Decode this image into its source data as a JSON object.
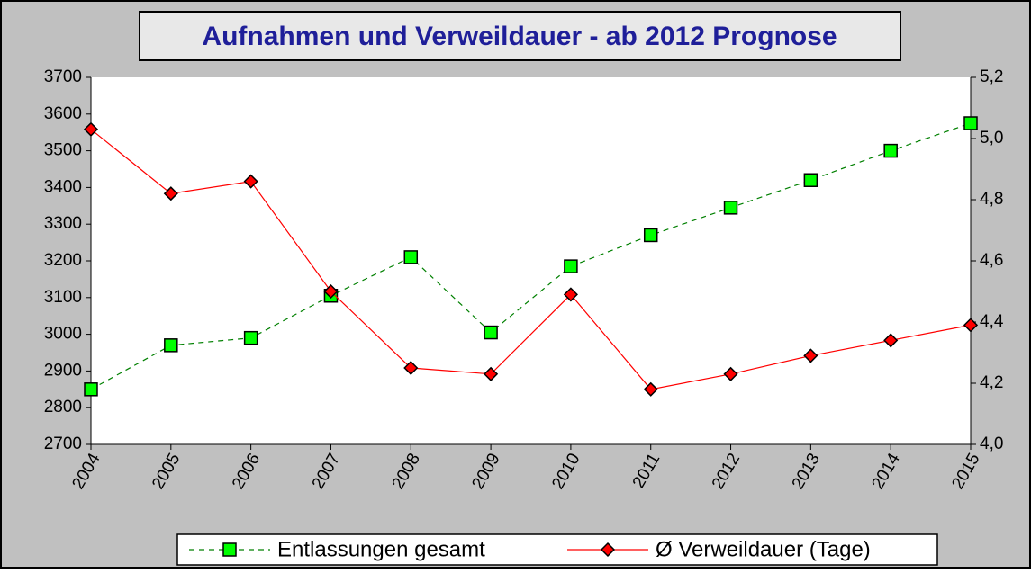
{
  "chart_data": {
    "type": "line",
    "title": "Aufnahmen und Verweildauer - ab 2012 Prognose",
    "categories": [
      "2004",
      "2005",
      "2006",
      "2007",
      "2008",
      "2009",
      "2010",
      "2011",
      "2012",
      "2013",
      "2014",
      "2015"
    ],
    "series": [
      {
        "name": "Entlassungen gesamt",
        "color": "#00ff00",
        "line_color": "#008000",
        "dashed": true,
        "marker": "square",
        "values": [
          2850,
          2970,
          2990,
          3105,
          3210,
          3005,
          3185,
          3270,
          3345,
          3420,
          3500,
          3575
        ]
      },
      {
        "name": "Ø Verweildauer (Tage)",
        "color": "#ff0000",
        "line_color": "#ff0000",
        "dashed": false,
        "marker": "diamond",
        "axis": "y2",
        "values": [
          5.03,
          4.82,
          4.86,
          4.5,
          4.25,
          4.23,
          4.49,
          4.18,
          4.23,
          4.29,
          4.34,
          4.39
        ]
      }
    ],
    "ylim": [
      2700,
      3700
    ],
    "yticks": [
      2700,
      2800,
      2900,
      3000,
      3100,
      3200,
      3300,
      3400,
      3500,
      3600,
      3700
    ],
    "y2lim": [
      4.0,
      5.2
    ],
    "y2ticks": [
      {
        "value": 4.0,
        "label": "4,0"
      },
      {
        "value": 4.2,
        "label": "4,2"
      },
      {
        "value": 4.4,
        "label": "4,4"
      },
      {
        "value": 4.6,
        "label": "4,6"
      },
      {
        "value": 4.8,
        "label": "4,8"
      },
      {
        "value": 5.0,
        "label": "5,0"
      },
      {
        "value": 5.2,
        "label": "5,2"
      }
    ],
    "legend": "bottom"
  }
}
